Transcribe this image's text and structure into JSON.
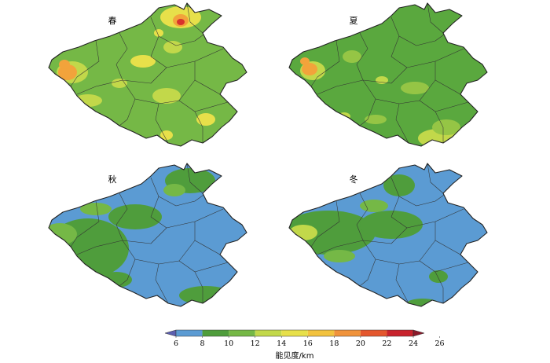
{
  "panels": [
    {
      "label": "春",
      "base": "#75b846",
      "accents": [
        "#c2d84a",
        "#e7e04a",
        "#f2a33b",
        "#d8322d"
      ]
    },
    {
      "label": "夏",
      "base": "#5aa83e",
      "accents": [
        "#95c545",
        "#c2d84a",
        "#f2a33b"
      ]
    },
    {
      "label": "秋",
      "base": "#5b9bd3",
      "accents": [
        "#4f9d3c",
        "#75b846"
      ]
    },
    {
      "label": "冬",
      "base": "#5b9bd3",
      "accents": [
        "#4f9d3c",
        "#75b846",
        "#c2d84a"
      ]
    }
  ],
  "colorbar": {
    "ticks": [
      "6",
      "8",
      "10",
      "12",
      "14",
      "16",
      "18",
      "20",
      "22",
      "24",
      "26"
    ],
    "colors": [
      "#5b5fb0",
      "#5b9bd3",
      "#4f9d3c",
      "#75b846",
      "#c2d84a",
      "#e7e04a",
      "#f2c23e",
      "#f0933b",
      "#e4572e",
      "#c8232d",
      "#8b1a2b"
    ],
    "title": "能见度/km"
  }
}
